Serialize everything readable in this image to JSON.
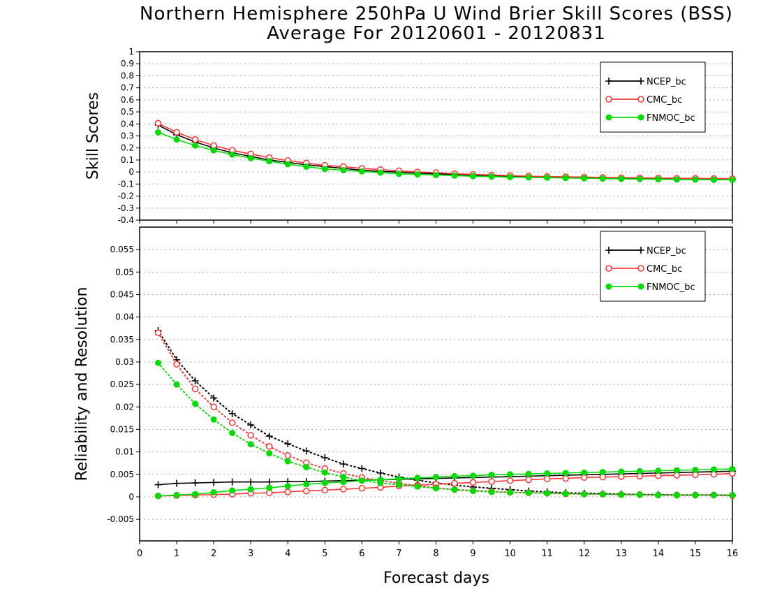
{
  "title": "Northern Hemisphere 250hPa U Wind Brier Skill Scores (BSS)",
  "subtitle": "Average For 20120601 - 20120831",
  "xlabel": "Forecast days",
  "chart_data": [
    {
      "type": "line",
      "title": "Northern Hemisphere 250hPa U Wind Brier Skill Scores (BSS)",
      "subtitle": "Average For 20120601 - 20120831",
      "xlabel": "Forecast days",
      "ylabel": "Skill Scores",
      "xlim": [
        0,
        16
      ],
      "ylim": [
        -0.4,
        1
      ],
      "xticks": [
        "0",
        "1",
        "2",
        "3",
        "4",
        "5",
        "6",
        "7",
        "8",
        "9",
        "10",
        "11",
        "12",
        "13",
        "14",
        "15",
        "16"
      ],
      "yticks": [
        "1",
        "0.9",
        "0.8",
        "0.7",
        "0.6",
        "0.5",
        "0.4",
        "0.3",
        "0.2",
        "0.1",
        "0",
        "-0.1",
        "-0.2",
        "-0.3",
        "-0.4"
      ],
      "grid": true,
      "legend_position": "top-right",
      "x": [
        0.5,
        1,
        1.5,
        2,
        2.5,
        3,
        3.5,
        4,
        4.5,
        5,
        5.5,
        6,
        6.5,
        7,
        7.5,
        8,
        8.5,
        9,
        9.5,
        10,
        10.5,
        11,
        11.5,
        12,
        12.5,
        13,
        13.5,
        14,
        14.5,
        15,
        15.5,
        16
      ],
      "series": [
        {
          "name": "NCEP_bc",
          "color": "#000000",
          "marker": "plus",
          "line": "solid",
          "values": [
            0.39,
            0.31,
            0.25,
            0.2,
            0.16,
            0.13,
            0.1,
            0.08,
            0.06,
            0.045,
            0.03,
            0.015,
            0.005,
            0,
            -0.01,
            -0.015,
            -0.02,
            -0.025,
            -0.03,
            -0.035,
            -0.038,
            -0.042,
            -0.045,
            -0.047,
            -0.05,
            -0.052,
            -0.055,
            -0.057,
            -0.058,
            -0.06,
            -0.062,
            -0.063
          ]
        },
        {
          "name": "CMC_bc",
          "color": "#ff3333",
          "marker": "open-circle",
          "line": "solid",
          "values": [
            0.405,
            0.33,
            0.27,
            0.22,
            0.18,
            0.15,
            0.12,
            0.095,
            0.075,
            0.055,
            0.045,
            0.03,
            0.02,
            0.01,
            0,
            -0.005,
            -0.015,
            -0.02,
            -0.025,
            -0.03,
            -0.035,
            -0.038,
            -0.04,
            -0.042,
            -0.045,
            -0.047,
            -0.048,
            -0.05,
            -0.052,
            -0.053,
            -0.054,
            -0.056
          ]
        },
        {
          "name": "FNMOC_bc",
          "color": "#00dd00",
          "marker": "filled-circle",
          "line": "solid",
          "values": [
            0.33,
            0.27,
            0.22,
            0.18,
            0.145,
            0.115,
            0.09,
            0.065,
            0.045,
            0.025,
            0.015,
            0.005,
            -0.005,
            -0.015,
            -0.02,
            -0.025,
            -0.03,
            -0.035,
            -0.038,
            -0.042,
            -0.045,
            -0.047,
            -0.05,
            -0.052,
            -0.055,
            -0.057,
            -0.058,
            -0.06,
            -0.062,
            -0.063,
            -0.064,
            -0.065
          ]
        }
      ]
    },
    {
      "type": "line",
      "ylabel": "Reliability and Resolution",
      "xlabel": "Forecast days",
      "xlim": [
        0,
        16
      ],
      "ylim": [
        -0.0098,
        0.06
      ],
      "xticks": [
        "0",
        "1",
        "2",
        "3",
        "4",
        "5",
        "6",
        "7",
        "8",
        "9",
        "10",
        "11",
        "12",
        "13",
        "14",
        "15",
        "16"
      ],
      "yticks": [
        "0.055",
        "0.05",
        "0.045",
        "0.04",
        "0.035",
        "0.03",
        "0.025",
        "0.02",
        "0.015",
        "0.01",
        "0.005",
        "0",
        "-0.005"
      ],
      "grid": true,
      "legend_position": "top-right",
      "x": [
        0.5,
        1,
        1.5,
        2,
        2.5,
        3,
        3.5,
        4,
        4.5,
        5,
        5.5,
        6,
        6.5,
        7,
        7.5,
        8,
        8.5,
        9,
        9.5,
        10,
        10.5,
        11,
        11.5,
        12,
        12.5,
        13,
        13.5,
        14,
        14.5,
        15,
        15.5,
        16
      ],
      "series": [
        {
          "name": "NCEP_bc",
          "color": "#000000",
          "marker": "plus",
          "line": "solid",
          "values": [
            0.0027,
            0.003,
            0.0031,
            0.0032,
            0.0033,
            0.0033,
            0.0033,
            0.0034,
            0.0034,
            0.0035,
            0.0036,
            0.0037,
            0.0038,
            0.0039,
            0.004,
            0.0041,
            0.0042,
            0.0043,
            0.0044,
            0.0045,
            0.0046,
            0.0047,
            0.0048,
            0.0049,
            0.005,
            0.0051,
            0.0052,
            0.0053,
            0.0054,
            0.0055,
            0.0056,
            0.0057
          ]
        },
        {
          "name": "NCEP_bc",
          "color": "#000000",
          "marker": "plus",
          "line": "dotted",
          "values": [
            0.037,
            0.0305,
            0.0258,
            0.022,
            0.0185,
            0.016,
            0.0135,
            0.0118,
            0.0102,
            0.0087,
            0.0073,
            0.0063,
            0.0053,
            0.0044,
            0.0037,
            0.0031,
            0.0026,
            0.0022,
            0.0019,
            0.0016,
            0.0013,
            0.0011,
            0.0009,
            0.0008,
            0.0007,
            0.0006,
            0.0005,
            0.0005,
            0.0004,
            0.0004,
            0.0004,
            0.0003
          ]
        },
        {
          "name": "CMC_bc",
          "color": "#ff3333",
          "marker": "open-circle",
          "line": "solid",
          "values": [
            0.0002,
            0.0003,
            0.0004,
            0.0005,
            0.0006,
            0.0008,
            0.0009,
            0.0011,
            0.0013,
            0.0015,
            0.0017,
            0.0019,
            0.0021,
            0.0024,
            0.0026,
            0.0028,
            0.003,
            0.0032,
            0.0034,
            0.0036,
            0.0038,
            0.004,
            0.0041,
            0.0043,
            0.0044,
            0.0045,
            0.0046,
            0.0047,
            0.0048,
            0.0049,
            0.005,
            0.0052
          ]
        },
        {
          "name": "CMC_bc",
          "color": "#ff3333",
          "marker": "open-circle",
          "line": "dotted",
          "values": [
            0.0365,
            0.0295,
            0.024,
            0.02,
            0.0165,
            0.0137,
            0.0112,
            0.0092,
            0.0076,
            0.0063,
            0.0052,
            0.0043,
            0.0036,
            0.003,
            0.0025,
            0.002,
            0.0016,
            0.0014,
            0.0012,
            0.001,
            0.0009,
            0.0008,
            0.0007,
            0.0006,
            0.0006,
            0.0005,
            0.0005,
            0.0004,
            0.0004,
            0.0004,
            0.0004,
            0.0003
          ]
        },
        {
          "name": "FNMOC_bc",
          "color": "#00dd00",
          "marker": "filled-circle",
          "line": "solid",
          "values": [
            0.0002,
            0.0004,
            0.0006,
            0.001,
            0.0014,
            0.0017,
            0.002,
            0.0024,
            0.0028,
            0.0031,
            0.0033,
            0.0036,
            0.0038,
            0.004,
            0.0042,
            0.0044,
            0.0046,
            0.0047,
            0.0049,
            0.005,
            0.0051,
            0.0052,
            0.0053,
            0.0054,
            0.0055,
            0.0056,
            0.0057,
            0.0058,
            0.0059,
            0.006,
            0.0061,
            0.0062
          ]
        },
        {
          "name": "FNMOC_bc",
          "color": "#00dd00",
          "marker": "filled-circle",
          "line": "dotted",
          "values": [
            0.0298,
            0.025,
            0.0207,
            0.0172,
            0.0142,
            0.0117,
            0.0097,
            0.0079,
            0.0066,
            0.0054,
            0.0044,
            0.0036,
            0.0031,
            0.0027,
            0.0023,
            0.0019,
            0.0016,
            0.0013,
            0.0011,
            0.001,
            0.0009,
            0.0008,
            0.0007,
            0.0006,
            0.0006,
            0.0005,
            0.0005,
            0.0004,
            0.0004,
            0.0004,
            0.0004,
            0.0004
          ]
        }
      ]
    }
  ]
}
